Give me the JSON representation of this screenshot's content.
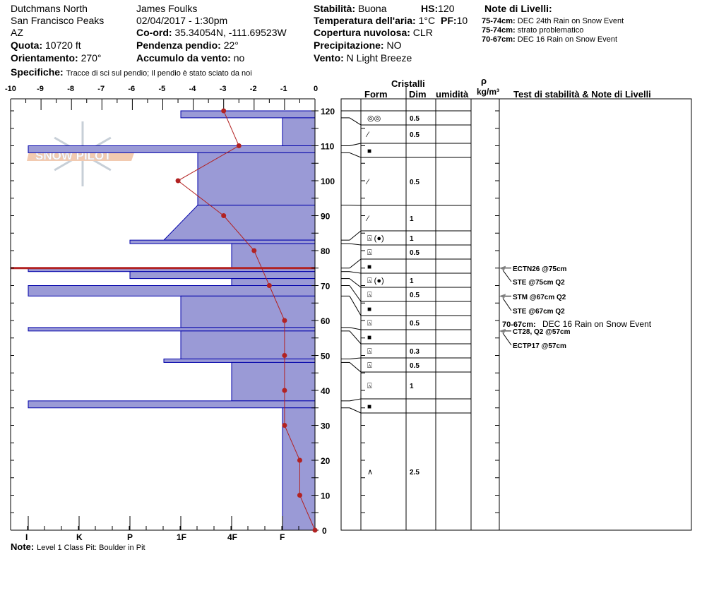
{
  "header": {
    "location": "Dutchmans North",
    "range": "San Francisco Peaks",
    "state": "AZ",
    "elevation_label": "Quota:",
    "elevation": "10720 ft",
    "aspect_label": "Orientamento:",
    "aspect": "270°",
    "observer": "James Foulks",
    "datetime": "02/04/2017 - 1:30pm",
    "coord_label": "Co-ord:",
    "coord": "35.34054N, -111.69523W",
    "slope_label": "Pendenza pendio:",
    "slope": "22°",
    "wind_loading_label": "Accumulo da vento:",
    "wind_loading": "no",
    "specifics_label": "Specifiche:",
    "specifics": "Tracce di sci sul pendio;  Il pendio è stato sciato da noi",
    "stability_label": "Stabilità:",
    "stability": "Buona",
    "hs_label": "HS:",
    "hs": "120",
    "air_temp_label": "Temperatura dell'aria:",
    "air_temp": "1°C",
    "pf_label": "PF:",
    "pf": "10",
    "cloud_label": "Copertura nuvolosa:",
    "cloud": "CLR",
    "precip_label": "Precipitazione:",
    "precip": "NO",
    "wind_label": "Vento:",
    "wind": "N Light Breeze",
    "layer_notes_title": "Note di Livelli:",
    "layer_notes": [
      {
        "range": "75-74cm:",
        "text": "DEC 24th Rain on Snow Event"
      },
      {
        "range": "75-74cm:",
        "text": "strato problematico"
      },
      {
        "range": "70-67cm:",
        "text": "DEC 16 Rain on Snow Event"
      }
    ]
  },
  "logo_text": "SNOW PILOT",
  "footer": {
    "note_label": "Note:",
    "note": "Level 1 Class Pit: Boulder in Pit"
  },
  "table_headers": {
    "crystals": "Cristalli",
    "form": "Form",
    "size": "Dim",
    "moisture": "umidità",
    "density_symbol": "ρ",
    "density_unit": "kg/m³",
    "tests": "Test di stabilità & Note di Livelli"
  },
  "colors": {
    "layer_fill": "#9a9ad6",
    "layer_stroke": "#0000aa",
    "temp_line": "#b22222",
    "problem_layer": "#b22222",
    "arrow": "#808080"
  },
  "chart_data": {
    "type": "snow-profile",
    "temp_axis": {
      "ticks": [
        -10,
        -9,
        -8,
        -7,
        -6,
        -5,
        -4,
        -3,
        -2,
        -1,
        0
      ],
      "range": [
        -10,
        0
      ]
    },
    "depth_axis": {
      "ticks": [
        0,
        10,
        20,
        30,
        40,
        50,
        60,
        70,
        80,
        90,
        100,
        110,
        120
      ],
      "range": [
        0,
        120
      ]
    },
    "hardness_axis": {
      "ticks": [
        "I",
        "K",
        "P",
        "1F",
        "4F",
        "F"
      ]
    },
    "temperature_profile": [
      {
        "depth": 120,
        "temp": -3
      },
      {
        "depth": 110,
        "temp": -2.5
      },
      {
        "depth": 100,
        "temp": -4.5
      },
      {
        "depth": 90,
        "temp": -3
      },
      {
        "depth": 80,
        "temp": -2
      },
      {
        "depth": 70,
        "temp": -1.5
      },
      {
        "depth": 60,
        "temp": -1
      },
      {
        "depth": 50,
        "temp": -1
      },
      {
        "depth": 40,
        "temp": -1
      },
      {
        "depth": 30,
        "temp": -1
      },
      {
        "depth": 20,
        "temp": -0.5
      },
      {
        "depth": 10,
        "temp": -0.5
      },
      {
        "depth": 0,
        "temp": 0
      }
    ],
    "layers": [
      {
        "top": 120,
        "bottom": 118,
        "hardness": "1F",
        "form": "◎◎",
        "size": "0.5"
      },
      {
        "top": 118,
        "bottom": 110,
        "hardness": "F",
        "form": "⁄",
        "size": "0.5"
      },
      {
        "top": 110,
        "bottom": 108,
        "hardness": "I",
        "form": "■",
        "size": ""
      },
      {
        "top": 108,
        "bottom": 93,
        "hardness": "1F-",
        "form": "⁄",
        "size": "0.5"
      },
      {
        "top": 93,
        "bottom": 83,
        "hardness": "1F-",
        "hardness_bottom": "1F+",
        "form": "⁄",
        "size": "1"
      },
      {
        "top": 83,
        "bottom": 82,
        "hardness": "P",
        "form": "⍓ (●)",
        "size": "1"
      },
      {
        "top": 82,
        "bottom": 75,
        "hardness": "4F",
        "form": "⍓",
        "size": "0.5"
      },
      {
        "top": 75,
        "bottom": 74,
        "hardness": "I",
        "form": "■",
        "size": ""
      },
      {
        "top": 74,
        "bottom": 72,
        "hardness": "P",
        "form": "⍓ (●)",
        "size": "1"
      },
      {
        "top": 72,
        "bottom": 70,
        "hardness": "4F",
        "form": "⍓",
        "size": "0.5"
      },
      {
        "top": 70,
        "bottom": 67,
        "hardness": "I",
        "form": "■",
        "size": ""
      },
      {
        "top": 67,
        "bottom": 58,
        "hardness": "1F",
        "form": "⍓",
        "size": "0.5"
      },
      {
        "top": 58,
        "bottom": 57,
        "hardness": "I",
        "form": "■",
        "size": ""
      },
      {
        "top": 57,
        "bottom": 49,
        "hardness": "1F",
        "form": "⍓",
        "size": "0.3"
      },
      {
        "top": 49,
        "bottom": 48,
        "hardness": "1F+",
        "form": "⍓",
        "size": "0.5"
      },
      {
        "top": 48,
        "bottom": 37,
        "hardness": "4F",
        "form": "⍓",
        "size": "1"
      },
      {
        "top": 37,
        "bottom": 35,
        "hardness": "I",
        "form": "■",
        "size": ""
      },
      {
        "top": 35,
        "bottom": 0,
        "hardness": "F",
        "form": "∧",
        "size": "2.5"
      }
    ],
    "problem_layer_depth": 75,
    "tests": [
      {
        "text": "ECTN26 @75cm",
        "depth": 75,
        "arrow": "straight"
      },
      {
        "text": "STE @75cm  Q2",
        "depth": 75,
        "arrow": "diagonal"
      },
      {
        "text": "STM @67cm  Q2",
        "depth": 67,
        "arrow": "straight"
      },
      {
        "text": "STE @67cm  Q2",
        "depth": 67,
        "arrow": "diagonal"
      },
      {
        "text": "CT28, Q2 @57cm",
        "depth": 57,
        "arrow": "straight"
      },
      {
        "text": "ECTP17 @57cm",
        "depth": 57,
        "arrow": "diagonal"
      }
    ],
    "layer_note": {
      "range": "70-67cm:",
      "text": "DEC 16 Rain on Snow Event"
    }
  }
}
